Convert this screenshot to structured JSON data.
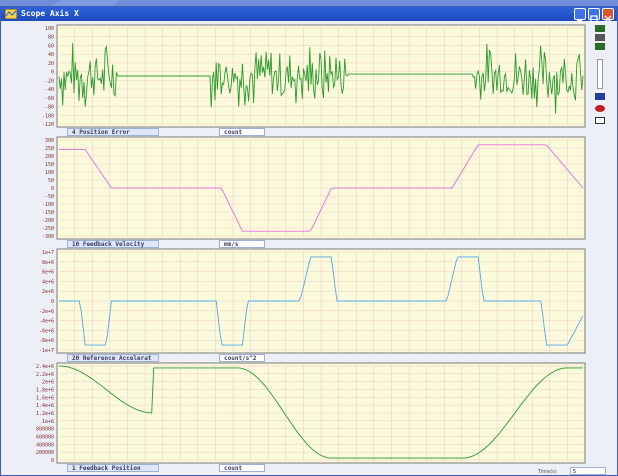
{
  "window": {
    "title": "Scope Axis X"
  },
  "time_box": {
    "label": "Time(s)",
    "value": "5"
  },
  "colors": {
    "plot_bg": "#fbfbdc",
    "grid": "#f2c8c8",
    "axis_text": "#8a2a2a",
    "title_bg": "#2f62d8"
  },
  "icons": [
    "scope-app-icon",
    "minimize-icon",
    "maximize-icon",
    "close-icon",
    "zoom-in-icon",
    "zoom-out-icon",
    "slider-icon",
    "record-icon",
    "trigger-icon",
    "settings-icon",
    "export-icon"
  ],
  "panels": [
    {
      "label": "4 Position Error",
      "unit": "count",
      "ticks": [
        "100",
        "80",
        "60",
        "40",
        "20",
        "0",
        "-20",
        "-40",
        "-60",
        "-80",
        "-100",
        "-120"
      ],
      "trace_color": "#2a9a2a"
    },
    {
      "label": "10 Feedback Velocity",
      "unit": "mm/s",
      "ticks": [
        "300",
        "250",
        "200",
        "150",
        "100",
        "50",
        "0",
        "-50",
        "-100",
        "-150",
        "-200",
        "-250",
        "-300"
      ],
      "trace_color": "#e070d8"
    },
    {
      "label": "20 Reference Accelerat",
      "unit": "count/s^2",
      "ticks": [
        "1e+7",
        "8e+6",
        "6e+6",
        "4e+6",
        "2e+6",
        "0",
        "-2e+6",
        "-4e+6",
        "-6e+6",
        "-8e+6",
        "-1e+7"
      ],
      "trace_color": "#50a8e8"
    },
    {
      "label": "1 Feedback Position",
      "unit": "count",
      "ticks": [
        "2.4e+6",
        "2.2e+6",
        "2e+6",
        "1.8e+6",
        "1.6e+6",
        "1.4e+6",
        "1.2e+6",
        "1e+6",
        "800000",
        "600000",
        "400000",
        "200000",
        "0"
      ],
      "trace_color": "#2a9a2a"
    }
  ]
}
